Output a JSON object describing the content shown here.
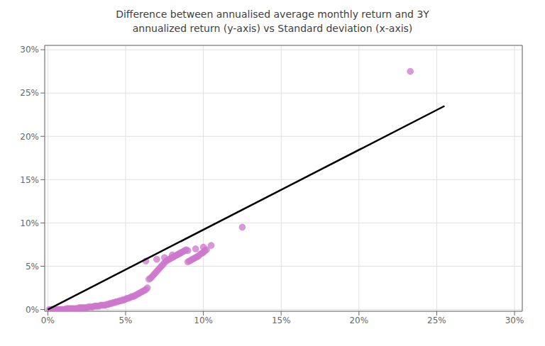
{
  "chart_data": {
    "type": "scatter",
    "title": "Difference between annualised average monthly return and 3Y\nannualized return (y-axis) vs Standard deviation (x-axis)",
    "series": [
      {
        "type": "scatter",
        "color": "#CC77CC",
        "x": [
          0.001,
          0.002,
          0.003,
          0.004,
          0.005,
          0.006,
          0.007,
          0.008,
          0.009,
          0.01,
          0.011,
          0.012,
          0.013,
          0.014,
          0.015,
          0.016,
          0.017,
          0.018,
          0.019,
          0.02,
          0.021,
          0.022,
          0.023,
          0.024,
          0.025,
          0.026,
          0.027,
          0.028,
          0.029,
          0.03,
          0.031,
          0.032,
          0.033,
          0.034,
          0.035,
          0.036,
          0.037,
          0.038,
          0.039,
          0.04,
          0.041,
          0.042,
          0.043,
          0.044,
          0.045,
          0.046,
          0.047,
          0.048,
          0.049,
          0.05,
          0.051,
          0.052,
          0.053,
          0.054,
          0.055,
          0.056,
          0.057,
          0.058,
          0.059,
          0.06,
          0.061,
          0.062,
          0.063,
          0.064,
          0.065,
          0.066,
          0.067,
          0.068,
          0.069,
          0.07,
          0.071,
          0.072,
          0.073,
          0.074,
          0.075,
          0.076,
          0.077,
          0.078,
          0.079,
          0.08,
          0.081,
          0.082,
          0.083,
          0.084,
          0.085,
          0.086,
          0.087,
          0.088,
          0.089,
          0.09,
          0.091,
          0.092,
          0.093,
          0.094,
          0.095,
          0.096,
          0.097,
          0.098,
          0.099,
          0.1,
          0.101,
          0.102,
          0.063,
          0.07,
          0.075,
          0.08,
          0.085,
          0.09,
          0.095,
          0.1,
          0.105,
          0.125,
          0.233
        ],
        "values": [
          0.0,
          0.0,
          0.0,
          0.0,
          0.0,
          0.0,
          0.0,
          0.0,
          0.0,
          0.0,
          0.0,
          0.001,
          0.001,
          0.001,
          0.001,
          0.001,
          0.001,
          0.001,
          0.001,
          0.002,
          0.002,
          0.002,
          0.002,
          0.002,
          0.002,
          0.003,
          0.003,
          0.003,
          0.003,
          0.004,
          0.004,
          0.004,
          0.004,
          0.005,
          0.005,
          0.005,
          0.005,
          0.006,
          0.006,
          0.007,
          0.007,
          0.008,
          0.008,
          0.009,
          0.009,
          0.01,
          0.01,
          0.011,
          0.011,
          0.012,
          0.013,
          0.013,
          0.014,
          0.015,
          0.015,
          0.016,
          0.017,
          0.018,
          0.019,
          0.02,
          0.021,
          0.022,
          0.023,
          0.025,
          0.035,
          0.036,
          0.038,
          0.04,
          0.042,
          0.044,
          0.046,
          0.048,
          0.05,
          0.052,
          0.054,
          0.056,
          0.057,
          0.058,
          0.059,
          0.06,
          0.061,
          0.062,
          0.063,
          0.064,
          0.065,
          0.066,
          0.067,
          0.068,
          0.069,
          0.055,
          0.056,
          0.057,
          0.058,
          0.059,
          0.06,
          0.061,
          0.062,
          0.064,
          0.065,
          0.066,
          0.068,
          0.069,
          0.056,
          0.058,
          0.06,
          0.063,
          0.065,
          0.068,
          0.07,
          0.072,
          0.074,
          0.095,
          0.275
        ]
      },
      {
        "type": "line",
        "color": "#000000",
        "x": [
          0.0,
          0.255
        ],
        "values": [
          0.0,
          0.235
        ]
      }
    ],
    "xlim": [
      -0.002,
      0.305
    ],
    "ylim": [
      -0.002,
      0.305
    ],
    "xticks": [
      {
        "value": 0.0,
        "label": "0%"
      },
      {
        "value": 0.05,
        "label": "5%"
      },
      {
        "value": 0.1,
        "label": "10%"
      },
      {
        "value": 0.15,
        "label": "15%"
      },
      {
        "value": 0.2,
        "label": "20%"
      },
      {
        "value": 0.25,
        "label": "25%"
      },
      {
        "value": 0.3,
        "label": "30%"
      }
    ],
    "yticks": [
      {
        "value": 0.0,
        "label": "0%"
      },
      {
        "value": 0.05,
        "label": "5%"
      },
      {
        "value": 0.1,
        "label": "10%"
      },
      {
        "value": 0.15,
        "label": "15%"
      },
      {
        "value": 0.2,
        "label": "20%"
      },
      {
        "value": 0.25,
        "label": "25%"
      },
      {
        "value": 0.3,
        "label": "30%"
      }
    ],
    "grid": true
  }
}
